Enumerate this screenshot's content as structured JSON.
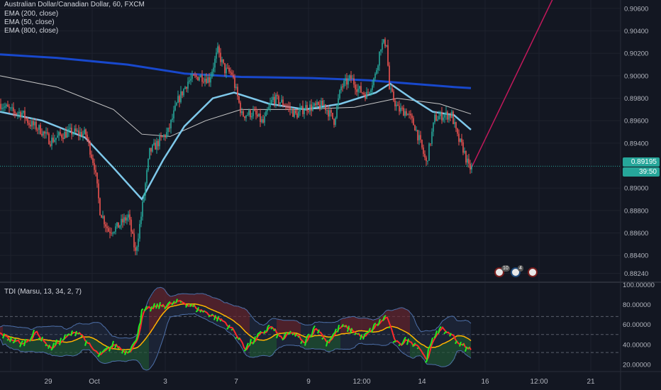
{
  "title": "Australian Dollar/Canadian Dollar, 60, FXCM",
  "legend": [
    "EMA (200, close)",
    "EMA (50, close)",
    "EMA (800, close)"
  ],
  "indicator_title": "TDI (Marsu, 13, 34, 2, 7)",
  "price_badge": "0.89195",
  "countdown_badge": "39:50",
  "event_counts": [
    "10",
    "4"
  ],
  "colors": {
    "background": "#131722",
    "up": "#26a69a",
    "down": "#ef5350",
    "ema200": "#1848cc",
    "ema50": "#7ec8ea",
    "ema800": "#c8c8c8",
    "price_line": "#26a69a",
    "projection": "#c2185b",
    "tdi_rsi": "#ff2a2a",
    "tdi_signal": "#22ee22",
    "tdi_base": "#ffb300",
    "tdi_band": "#4d6fa8"
  },
  "chart_data": [
    {
      "type": "candlestick",
      "title": "Australian Dollar/Canadian Dollar, 60, FXCM",
      "y_ticks": [
        "0.90600",
        "0.90400",
        "0.90200",
        "0.90000",
        "0.89800",
        "0.89600",
        "0.89400",
        "0.89000",
        "0.88800",
        "0.88600",
        "0.88400",
        "0.88240"
      ],
      "x_ticks": [
        "29",
        "Oct",
        "3",
        "7",
        "9",
        "12:00",
        "14",
        "16",
        "12:00",
        "21"
      ],
      "ylim": [
        0.8818,
        0.9065
      ],
      "last_price": 0.89195,
      "anchors": [
        {
          "t": 0,
          "p": 0.8975
        },
        {
          "t": 8,
          "p": 0.8968
        },
        {
          "t": 15,
          "p": 0.8967
        },
        {
          "t": 20,
          "p": 0.8958
        },
        {
          "t": 28,
          "p": 0.8952
        },
        {
          "t": 35,
          "p": 0.8942
        },
        {
          "t": 42,
          "p": 0.8947
        },
        {
          "t": 50,
          "p": 0.895
        },
        {
          "t": 60,
          "p": 0.8948
        },
        {
          "t": 66,
          "p": 0.892
        },
        {
          "t": 70,
          "p": 0.888
        },
        {
          "t": 76,
          "p": 0.8862
        },
        {
          "t": 82,
          "p": 0.8865
        },
        {
          "t": 90,
          "p": 0.8875
        },
        {
          "t": 95,
          "p": 0.8842
        },
        {
          "t": 99,
          "p": 0.8875
        },
        {
          "t": 105,
          "p": 0.8932
        },
        {
          "t": 112,
          "p": 0.8942
        },
        {
          "t": 118,
          "p": 0.895
        },
        {
          "t": 125,
          "p": 0.8978
        },
        {
          "t": 132,
          "p": 0.8995
        },
        {
          "t": 140,
          "p": 0.9
        },
        {
          "t": 147,
          "p": 0.8997
        },
        {
          "t": 153,
          "p": 0.9022
        },
        {
          "t": 158,
          "p": 0.9005
        },
        {
          "t": 163,
          "p": 0.9002
        },
        {
          "t": 170,
          "p": 0.8965
        },
        {
          "t": 178,
          "p": 0.8967
        },
        {
          "t": 185,
          "p": 0.8958
        },
        {
          "t": 192,
          "p": 0.898
        },
        {
          "t": 200,
          "p": 0.8975
        },
        {
          "t": 208,
          "p": 0.8965
        },
        {
          "t": 215,
          "p": 0.8972
        },
        {
          "t": 222,
          "p": 0.8972
        },
        {
          "t": 228,
          "p": 0.8974
        },
        {
          "t": 235,
          "p": 0.896
        },
        {
          "t": 240,
          "p": 0.899
        },
        {
          "t": 247,
          "p": 0.8998
        },
        {
          "t": 252,
          "p": 0.8988
        },
        {
          "t": 258,
          "p": 0.8983
        },
        {
          "t": 264,
          "p": 0.9
        },
        {
          "t": 268,
          "p": 0.9027
        },
        {
          "t": 272,
          "p": 0.903
        },
        {
          "t": 274,
          "p": 0.8988
        },
        {
          "t": 280,
          "p": 0.897
        },
        {
          "t": 286,
          "p": 0.8968
        },
        {
          "t": 292,
          "p": 0.8955
        },
        {
          "t": 297,
          "p": 0.8935
        },
        {
          "t": 300,
          "p": 0.8922
        },
        {
          "t": 306,
          "p": 0.8962
        },
        {
          "t": 312,
          "p": 0.8965
        },
        {
          "t": 318,
          "p": 0.8965
        },
        {
          "t": 322,
          "p": 0.8945
        },
        {
          "t": 326,
          "p": 0.8935
        },
        {
          "t": 330,
          "p": 0.8918
        }
      ],
      "ema50": [
        [
          0,
          0.8968
        ],
        [
          30,
          0.896
        ],
        [
          60,
          0.8945
        ],
        [
          80,
          0.8918
        ],
        [
          100,
          0.889
        ],
        [
          115,
          0.8925
        ],
        [
          130,
          0.8955
        ],
        [
          150,
          0.898
        ],
        [
          165,
          0.8985
        ],
        [
          190,
          0.8975
        ],
        [
          215,
          0.897
        ],
        [
          240,
          0.8975
        ],
        [
          265,
          0.8985
        ],
        [
          275,
          0.8993
        ],
        [
          290,
          0.898
        ],
        [
          305,
          0.8968
        ],
        [
          320,
          0.8965
        ],
        [
          332,
          0.8952
        ]
      ],
      "ema200": [
        [
          0,
          0.9019
        ],
        [
          40,
          0.9016
        ],
        [
          90,
          0.901
        ],
        [
          130,
          0.9002
        ],
        [
          170,
          0.8999
        ],
        [
          220,
          0.8998
        ],
        [
          260,
          0.8996
        ],
        [
          290,
          0.8993
        ],
        [
          320,
          0.899
        ],
        [
          332,
          0.8989
        ]
      ],
      "ema800": [
        [
          0,
          0.9
        ],
        [
          40,
          0.899
        ],
        [
          80,
          0.897
        ],
        [
          100,
          0.8948
        ],
        [
          120,
          0.8946
        ],
        [
          145,
          0.896
        ],
        [
          170,
          0.897
        ],
        [
          210,
          0.897
        ],
        [
          250,
          0.8972
        ],
        [
          280,
          0.898
        ],
        [
          310,
          0.8975
        ],
        [
          332,
          0.8966
        ]
      ],
      "projection": [
        [
          0.89172,
          0.89172
        ],
        [
          0.9068,
          0.9068
        ]
      ]
    },
    {
      "type": "line",
      "title": "TDI (Marsu, 13, 34, 2, 7)",
      "y_ticks": [
        "100.00000",
        "80.00000",
        "60.00000",
        "40.00000",
        "20.00000"
      ],
      "ylim": [
        15,
        101
      ],
      "levels": [
        32,
        50,
        68
      ],
      "rsi_anchors": [
        {
          "t": 0,
          "v": 50
        },
        {
          "t": 15,
          "v": 40
        },
        {
          "t": 25,
          "v": 52
        },
        {
          "t": 35,
          "v": 36
        },
        {
          "t": 45,
          "v": 46
        },
        {
          "t": 55,
          "v": 54
        },
        {
          "t": 62,
          "v": 38
        },
        {
          "t": 70,
          "v": 28
        },
        {
          "t": 80,
          "v": 40
        },
        {
          "t": 88,
          "v": 33
        },
        {
          "t": 95,
          "v": 40
        },
        {
          "t": 100,
          "v": 72
        },
        {
          "t": 110,
          "v": 78
        },
        {
          "t": 120,
          "v": 80
        },
        {
          "t": 128,
          "v": 83
        },
        {
          "t": 138,
          "v": 76
        },
        {
          "t": 148,
          "v": 70
        },
        {
          "t": 158,
          "v": 62
        },
        {
          "t": 165,
          "v": 52
        },
        {
          "t": 172,
          "v": 36
        },
        {
          "t": 180,
          "v": 45
        },
        {
          "t": 190,
          "v": 58
        },
        {
          "t": 198,
          "v": 45
        },
        {
          "t": 206,
          "v": 52
        },
        {
          "t": 214,
          "v": 40
        },
        {
          "t": 222,
          "v": 58
        },
        {
          "t": 230,
          "v": 42
        },
        {
          "t": 240,
          "v": 58
        },
        {
          "t": 248,
          "v": 54
        },
        {
          "t": 256,
          "v": 46
        },
        {
          "t": 264,
          "v": 58
        },
        {
          "t": 272,
          "v": 68
        },
        {
          "t": 278,
          "v": 40
        },
        {
          "t": 286,
          "v": 44
        },
        {
          "t": 294,
          "v": 40
        },
        {
          "t": 300,
          "v": 24
        },
        {
          "t": 308,
          "v": 55
        },
        {
          "t": 316,
          "v": 52
        },
        {
          "t": 324,
          "v": 40
        },
        {
          "t": 330,
          "v": 35
        }
      ]
    }
  ]
}
